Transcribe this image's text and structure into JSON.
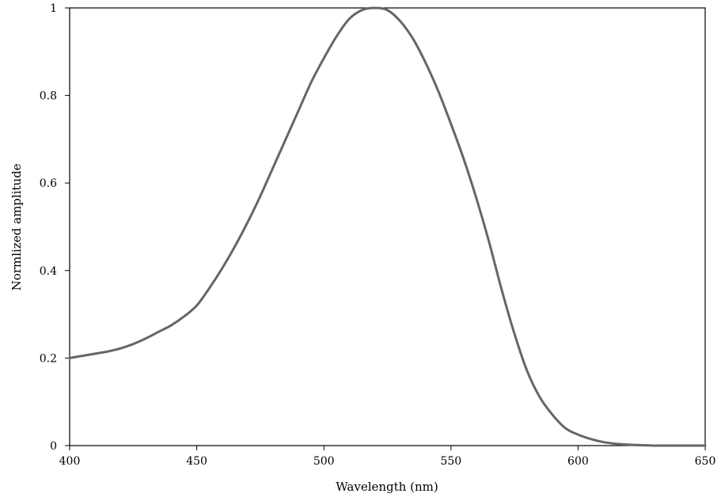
{
  "chart_data": {
    "type": "line",
    "title": "",
    "xlabel": "Wavelength (nm)",
    "ylabel": "Normlized amplitude",
    "xlim": [
      400,
      650
    ],
    "ylim": [
      0,
      1
    ],
    "x_ticks": [
      400,
      450,
      500,
      550,
      600,
      650
    ],
    "y_ticks": [
      0,
      0.2,
      0.4,
      0.6,
      0.8,
      1
    ],
    "grid": false,
    "legend": "none",
    "line_color": "#666666",
    "series": [
      {
        "x": [
          400,
          405,
          410,
          415,
          420,
          425,
          430,
          435,
          440,
          445,
          450,
          455,
          460,
          465,
          470,
          475,
          480,
          485,
          490,
          495,
          500,
          505,
          510,
          515,
          520,
          525,
          530,
          535,
          540,
          545,
          550,
          555,
          560,
          565,
          570,
          575,
          580,
          585,
          590,
          595,
          600,
          605,
          610,
          615,
          620,
          625,
          630,
          635,
          640,
          645,
          650
        ],
        "y": [
          0.2,
          0.205,
          0.21,
          0.215,
          0.222,
          0.232,
          0.245,
          0.26,
          0.275,
          0.295,
          0.32,
          0.36,
          0.405,
          0.455,
          0.51,
          0.57,
          0.635,
          0.7,
          0.765,
          0.83,
          0.885,
          0.935,
          0.975,
          0.995,
          1.0,
          0.995,
          0.97,
          0.93,
          0.875,
          0.81,
          0.735,
          0.655,
          0.565,
          0.465,
          0.355,
          0.255,
          0.17,
          0.11,
          0.07,
          0.04,
          0.025,
          0.015,
          0.008,
          0.004,
          0.002,
          0.001,
          0.0,
          0.0,
          0.0,
          0.0,
          0.0
        ]
      }
    ]
  }
}
